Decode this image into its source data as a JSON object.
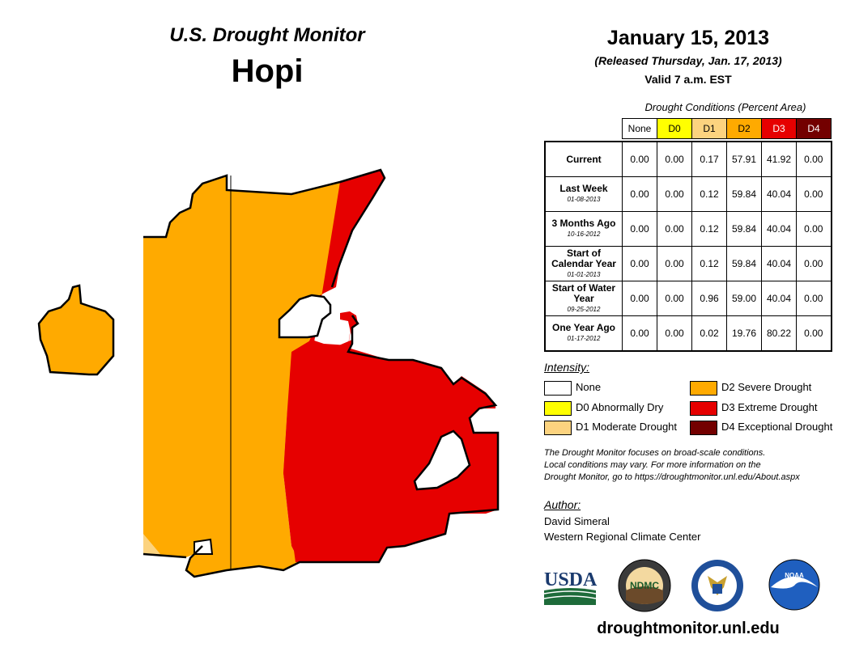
{
  "header": {
    "monitor_title": "U.S. Drought Monitor",
    "region": "Hopi",
    "date": "January 15, 2013",
    "released": "(Released Thursday, Jan. 17, 2013)",
    "valid": "Valid 7 a.m. EST"
  },
  "table": {
    "title": "Drought Conditions (Percent Area)",
    "columns": [
      {
        "label": "None",
        "color": "#ffffff",
        "text_color": "#000000"
      },
      {
        "label": "D0",
        "color": "#ffff00",
        "text_color": "#000000"
      },
      {
        "label": "D1",
        "color": "#fcd37f",
        "text_color": "#000000"
      },
      {
        "label": "D2",
        "color": "#ffaa00",
        "text_color": "#000000"
      },
      {
        "label": "D3",
        "color": "#e60000",
        "text_color": "#ffffff"
      },
      {
        "label": "D4",
        "color": "#730000",
        "text_color": "#ffffff"
      }
    ],
    "rows": [
      {
        "label": "Current",
        "date": "",
        "values": [
          "0.00",
          "0.00",
          "0.17",
          "57.91",
          "41.92",
          "0.00"
        ]
      },
      {
        "label": "Last Week",
        "date": "01-08-2013",
        "values": [
          "0.00",
          "0.00",
          "0.12",
          "59.84",
          "40.04",
          "0.00"
        ]
      },
      {
        "label": "3 Months Ago",
        "date": "10-16-2012",
        "values": [
          "0.00",
          "0.00",
          "0.12",
          "59.84",
          "40.04",
          "0.00"
        ]
      },
      {
        "label": "Start of Calendar Year",
        "date": "01-01-2013",
        "values": [
          "0.00",
          "0.00",
          "0.12",
          "59.84",
          "40.04",
          "0.00"
        ]
      },
      {
        "label": "Start of Water Year",
        "date": "09-25-2012",
        "values": [
          "0.00",
          "0.00",
          "0.96",
          "59.00",
          "40.04",
          "0.00"
        ]
      },
      {
        "label": "One Year Ago",
        "date": "01-17-2012",
        "values": [
          "0.00",
          "0.00",
          "0.02",
          "19.76",
          "80.22",
          "0.00"
        ]
      }
    ]
  },
  "legend": {
    "title": "Intensity:",
    "items": [
      {
        "label": "None",
        "color": "#ffffff"
      },
      {
        "label": "D0 Abnormally Dry",
        "color": "#ffff00"
      },
      {
        "label": "D1 Moderate Drought",
        "color": "#fcd37f"
      },
      {
        "label": "D2 Severe Drought",
        "color": "#ffaa00"
      },
      {
        "label": "D3 Extreme Drought",
        "color": "#e60000"
      },
      {
        "label": "D4 Exceptional Drought",
        "color": "#730000"
      }
    ]
  },
  "note": {
    "line1": "The Drought Monitor focuses on broad-scale conditions.",
    "line2": "Local conditions may vary. For more information on the",
    "line3": "Drought Monitor, go to https://droughtmonitor.unl.edu/About.aspx"
  },
  "author": {
    "title": "Author:",
    "name": "David Simeral",
    "org": "Western Regional Climate Center"
  },
  "logos": {
    "usda": "USDA",
    "ndmc": "NDMC",
    "noaa": "NOAA"
  },
  "website": "droughtmonitor.unl.edu"
}
